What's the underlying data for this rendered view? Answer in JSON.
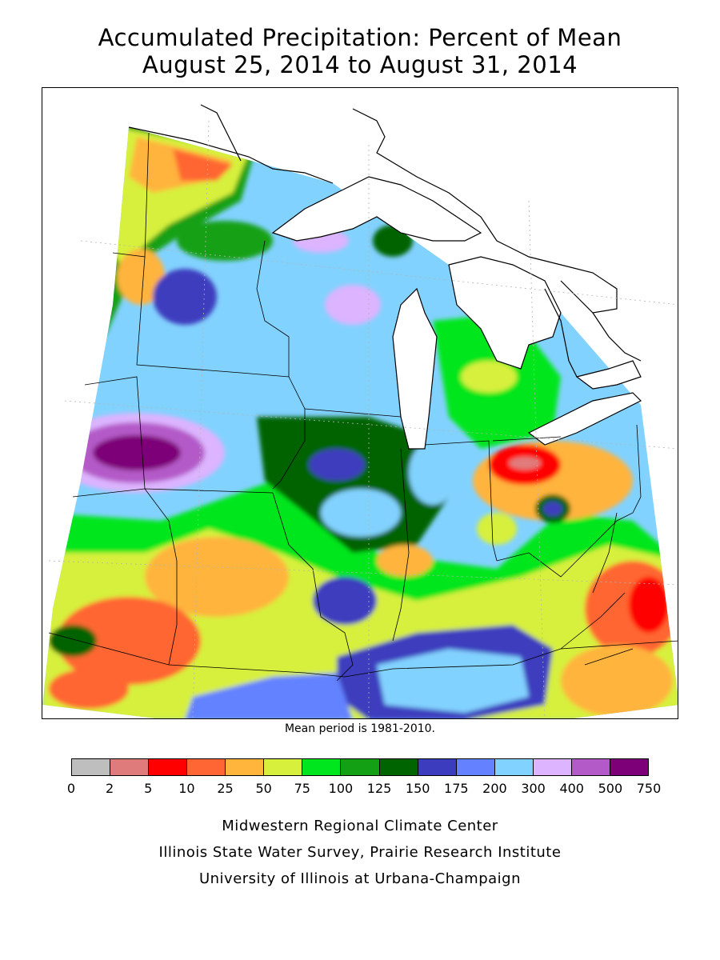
{
  "title_line1": "Accumulated Precipitation: Percent of Mean",
  "title_line2": "August 25, 2014 to August 31, 2014",
  "mean_note": "Mean period is 1981-2010.",
  "legend": {
    "colors": [
      "#bebebe",
      "#e07b7b",
      "#ff0000",
      "#ff6633",
      "#ffb43c",
      "#d7f03c",
      "#00e61e",
      "#14a014",
      "#006400",
      "#3c3cbe",
      "#6482ff",
      "#82d2ff",
      "#dcb4ff",
      "#b45ac8",
      "#7d0078"
    ],
    "labels": [
      "0",
      "2",
      "5",
      "10",
      "25",
      "50",
      "75",
      "100",
      "125",
      "150",
      "175",
      "200",
      "300",
      "400",
      "500",
      "750"
    ]
  },
  "credits": [
    "Midwestern Regional Climate Center",
    "Illinois State Water Survey, Prairie Research Institute",
    "University of Illinois at Urbana-Champaign"
  ]
}
